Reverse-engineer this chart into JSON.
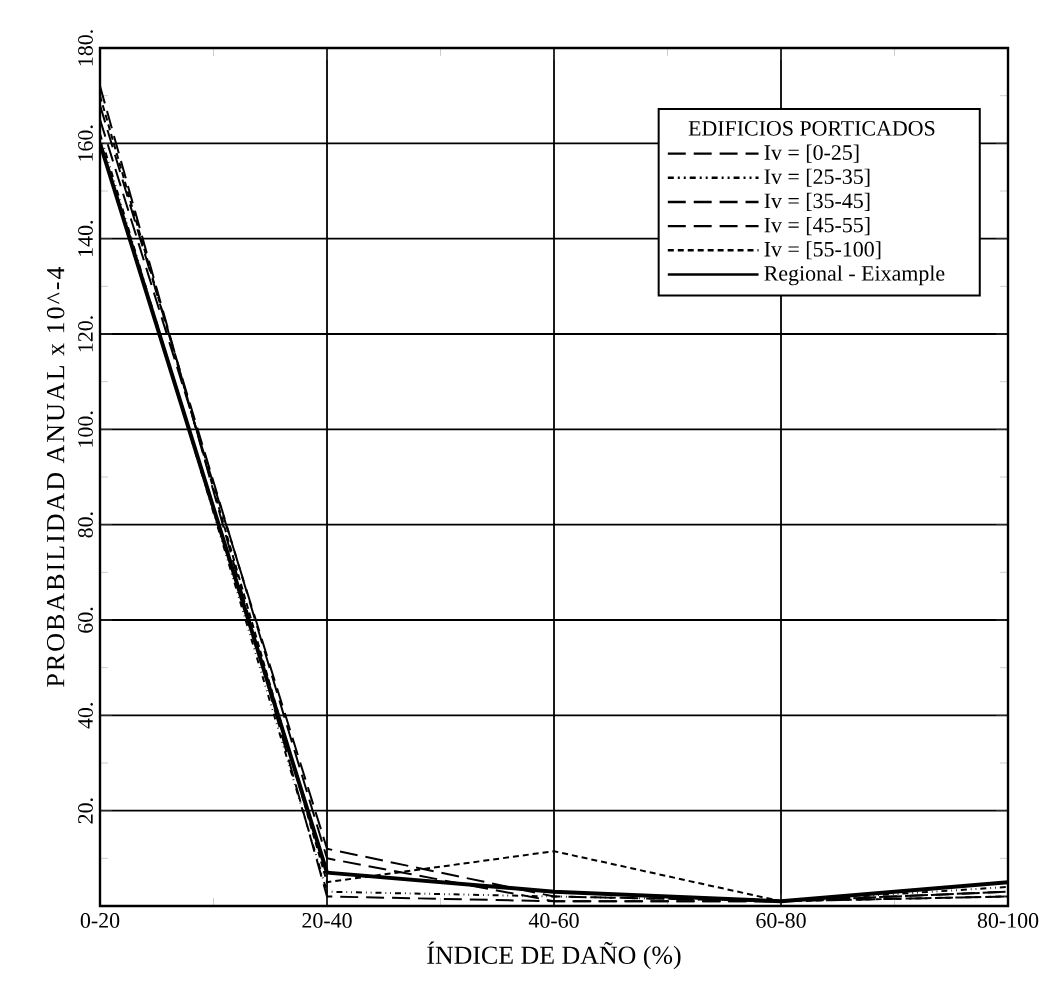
{
  "chart_data": {
    "type": "line",
    "xlabel": "ÍNDICE DE DAÑO (%)",
    "ylabel": "PROBABILIDAD ANUAL x 10^-4",
    "legend_title": "EDIFICIOS PORTICADOS",
    "categories": [
      "0-20",
      "20-40",
      "40-60",
      "60-80",
      "80-100"
    ],
    "series": [
      {
        "name": "Iv = [0-25]",
        "color": "#000000",
        "line_style": "dashed",
        "values": [
          165,
          12,
          2,
          1,
          3
        ]
      },
      {
        "name": "Iv = [25-35]",
        "color": "#000000",
        "line_style": "dashdotdotted",
        "values": [
          162,
          3,
          2,
          1,
          4
        ]
      },
      {
        "name": "Iv = [35-45]",
        "color": "#000000",
        "line_style": "dashed",
        "values": [
          168,
          10,
          1,
          1,
          2
        ]
      },
      {
        "name": "Iv = [45-55]",
        "color": "#000000",
        "line_style": "dashed",
        "values": [
          172,
          2,
          1,
          1,
          3
        ]
      },
      {
        "name": "Iv = [55-100]",
        "color": "#000000",
        "line_style": "densely dashed",
        "values": [
          170,
          5,
          11.5,
          1,
          2
        ]
      },
      {
        "name": "Regional - Eixample",
        "color": "#000000",
        "line_style": "solid",
        "values": [
          160,
          7,
          3,
          1,
          5
        ]
      }
    ],
    "ylim": [
      0,
      180
    ],
    "yticks": [
      {
        "value": 0,
        "label": null
      },
      {
        "value": 20,
        "label": "20."
      },
      {
        "value": 40,
        "label": "40."
      },
      {
        "value": 60,
        "label": "60."
      },
      {
        "value": 80,
        "label": "80."
      },
      {
        "value": 100,
        "label": "100."
      },
      {
        "value": 120,
        "label": "120."
      },
      {
        "value": 140,
        "label": "140."
      },
      {
        "value": 160,
        "label": "160."
      },
      {
        "value": 180,
        "label": "180."
      }
    ],
    "grid": true,
    "legend": "top right",
    "marker": "none"
  }
}
